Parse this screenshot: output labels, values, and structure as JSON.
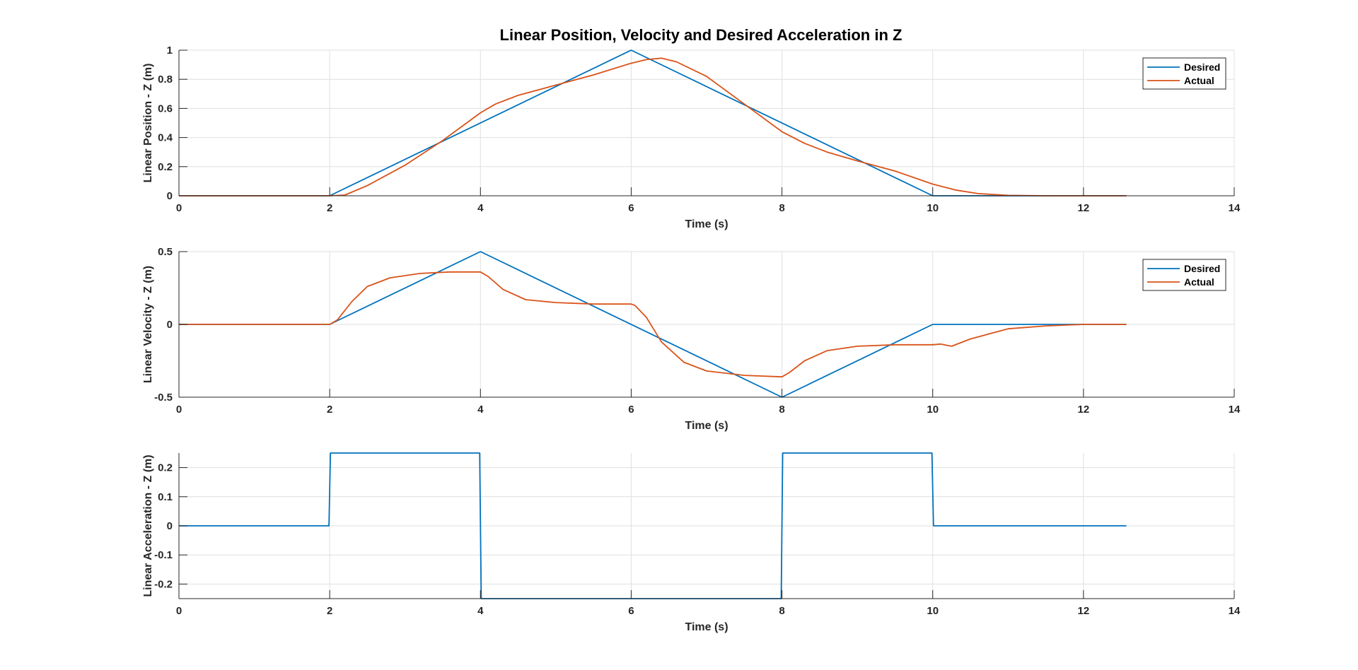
{
  "figure_title": "Linear Position, Velocity and Desired Acceleration in Z",
  "chart_data": [
    {
      "type": "line",
      "xlabel": "Time (s)",
      "ylabel": "Linear Position - Z (m)",
      "xlim": [
        0,
        14
      ],
      "ylim": [
        0,
        1
      ],
      "xticks": [
        0,
        2,
        4,
        6,
        8,
        10,
        12,
        14
      ],
      "yticks": [
        0,
        0.2,
        0.4,
        0.6,
        0.8,
        1
      ],
      "ytick_labels": [
        "0",
        "0.2",
        "0.4",
        "0.6",
        "0.8",
        "1"
      ],
      "grid": true,
      "legend": "top-right",
      "series": [
        {
          "name": "Desired",
          "color": "#0072BD",
          "x": [
            0,
            2,
            6,
            10,
            12.57
          ],
          "y": [
            0,
            0,
            1,
            0,
            0
          ]
        },
        {
          "name": "Actual",
          "color": "#D95319",
          "x": [
            0,
            2,
            2.2,
            2.5,
            3,
            3.5,
            4,
            4.2,
            4.5,
            5,
            5.5,
            6,
            6.2,
            6.4,
            6.6,
            7,
            7.5,
            8,
            8.3,
            8.6,
            9,
            9.5,
            10,
            10.3,
            10.6,
            11,
            11.5,
            12,
            12.57
          ],
          "y": [
            0,
            0,
            0.005,
            0.07,
            0.21,
            0.38,
            0.57,
            0.63,
            0.69,
            0.76,
            0.83,
            0.91,
            0.935,
            0.945,
            0.92,
            0.82,
            0.63,
            0.44,
            0.36,
            0.3,
            0.24,
            0.17,
            0.08,
            0.04,
            0.015,
            0.003,
            0,
            0,
            0
          ]
        }
      ]
    },
    {
      "type": "line",
      "xlabel": "Time (s)",
      "ylabel": "Linear Velocity - Z (m)",
      "xlim": [
        0,
        14
      ],
      "ylim": [
        -0.5,
        0.5
      ],
      "xticks": [
        0,
        2,
        4,
        6,
        8,
        10,
        12,
        14
      ],
      "yticks": [
        -0.5,
        0,
        0.5
      ],
      "ytick_labels": [
        "-0.5",
        "0",
        "0.5"
      ],
      "grid": true,
      "legend": "top-right",
      "series": [
        {
          "name": "Desired",
          "color": "#0072BD",
          "x": [
            0,
            2,
            4,
            8,
            10,
            12.57
          ],
          "y": [
            0,
            0,
            0.5,
            -0.5,
            0,
            0
          ]
        },
        {
          "name": "Actual",
          "color": "#D95319",
          "x": [
            0,
            2,
            2.1,
            2.3,
            2.5,
            2.8,
            3.2,
            3.6,
            4,
            4.1,
            4.3,
            4.6,
            5,
            5.5,
            6,
            6.05,
            6.2,
            6.4,
            6.7,
            7,
            7.5,
            8,
            8.1,
            8.3,
            8.6,
            9,
            9.5,
            10,
            10.1,
            10.25,
            10.5,
            11,
            11.5,
            12,
            12.57
          ],
          "y": [
            0,
            0,
            0.03,
            0.16,
            0.26,
            0.32,
            0.35,
            0.36,
            0.36,
            0.33,
            0.24,
            0.17,
            0.15,
            0.14,
            0.14,
            0.13,
            0.05,
            -0.12,
            -0.26,
            -0.32,
            -0.35,
            -0.36,
            -0.33,
            -0.25,
            -0.18,
            -0.15,
            -0.14,
            -0.14,
            -0.135,
            -0.15,
            -0.1,
            -0.03,
            -0.01,
            0,
            0
          ]
        }
      ]
    },
    {
      "type": "line",
      "xlabel": "Time (s)",
      "ylabel": "Linear Acceleration - Z (m)",
      "xlim": [
        0,
        14
      ],
      "ylim": [
        -0.25,
        0.25
      ],
      "xticks": [
        0,
        2,
        4,
        6,
        8,
        10,
        12,
        14
      ],
      "yticks": [
        -0.2,
        -0.1,
        0,
        0.1,
        0.2
      ],
      "ytick_labels": [
        "-0.2",
        "-0.1",
        "0",
        "0.1",
        "0.2"
      ],
      "grid": true,
      "legend": "none",
      "series": [
        {
          "name": "",
          "color": "#0072BD",
          "x": [
            0,
            1.99,
            2.01,
            3.99,
            4.01,
            7.99,
            8.01,
            9.99,
            10.01,
            12.57
          ],
          "y": [
            0,
            0,
            0.25,
            0.25,
            -0.25,
            -0.25,
            0.25,
            0.25,
            0,
            0
          ]
        }
      ]
    }
  ]
}
